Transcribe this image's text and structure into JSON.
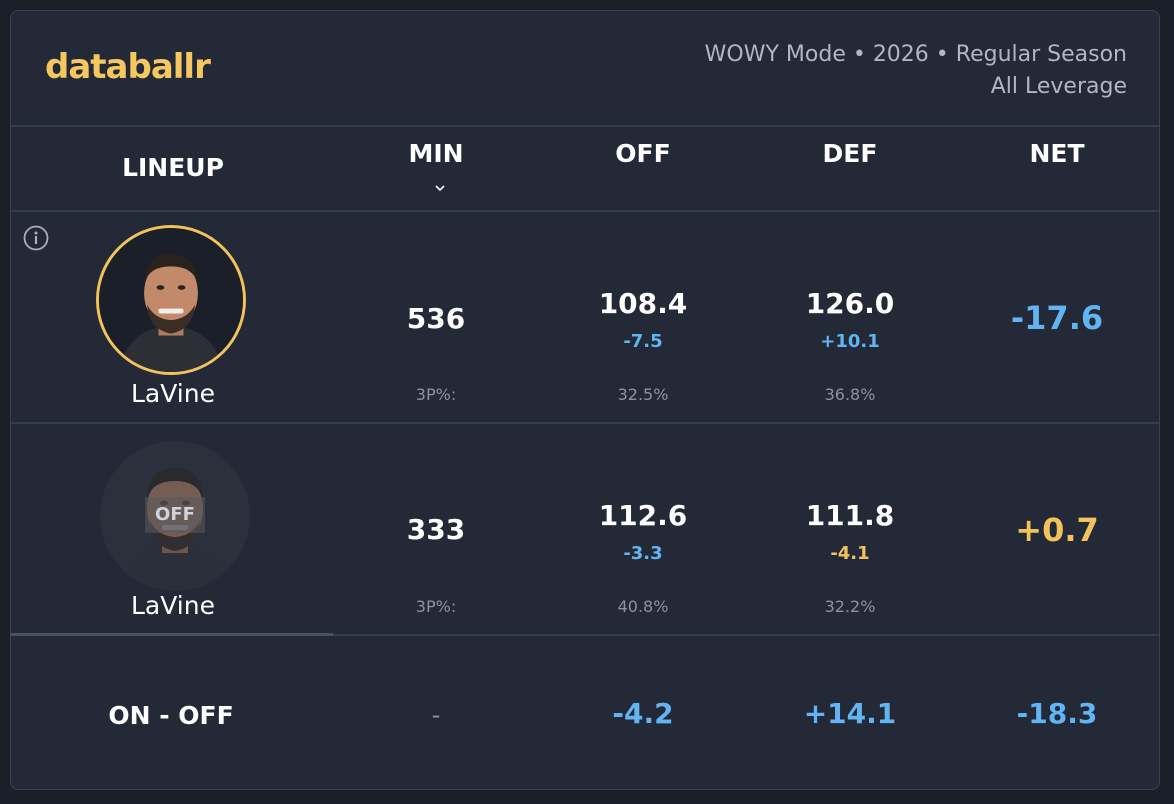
{
  "brand": {
    "logo": "databallr",
    "accent": "#f6c660"
  },
  "header": {
    "line1": "WOWY Mode • 2026 • Regular Season",
    "line2": "All Leverage"
  },
  "columns": {
    "lineup": "LINEUP",
    "min": "MIN",
    "off": "OFF",
    "def": "DEF",
    "net": "NET"
  },
  "rows": [
    {
      "state": "on",
      "player": "LaVine",
      "min": "536",
      "off": "108.4",
      "off_delta": "-7.5",
      "def": "126.0",
      "def_delta": "+10.1",
      "net": "-17.6",
      "tp_label": "3P%:",
      "off_3p": "32.5%",
      "def_3p": "36.8%"
    },
    {
      "state": "off",
      "badge": "OFF",
      "player": "LaVine",
      "min": "333",
      "off": "112.6",
      "off_delta": "-3.3",
      "def": "111.8",
      "def_delta": "-4.1",
      "net": "+0.7",
      "tp_label": "3P%:",
      "off_3p": "40.8%",
      "def_3p": "32.2%"
    }
  ],
  "summary": {
    "label": "ON - OFF",
    "min": "-",
    "off": "-4.2",
    "def": "+14.1",
    "net": "-18.3"
  },
  "colors": {
    "positive_blue": "#63b5f2",
    "gold": "#f2c35c",
    "background": "#232937"
  },
  "icons": {
    "sort": "chevron-down-icon",
    "info": "info-icon"
  }
}
